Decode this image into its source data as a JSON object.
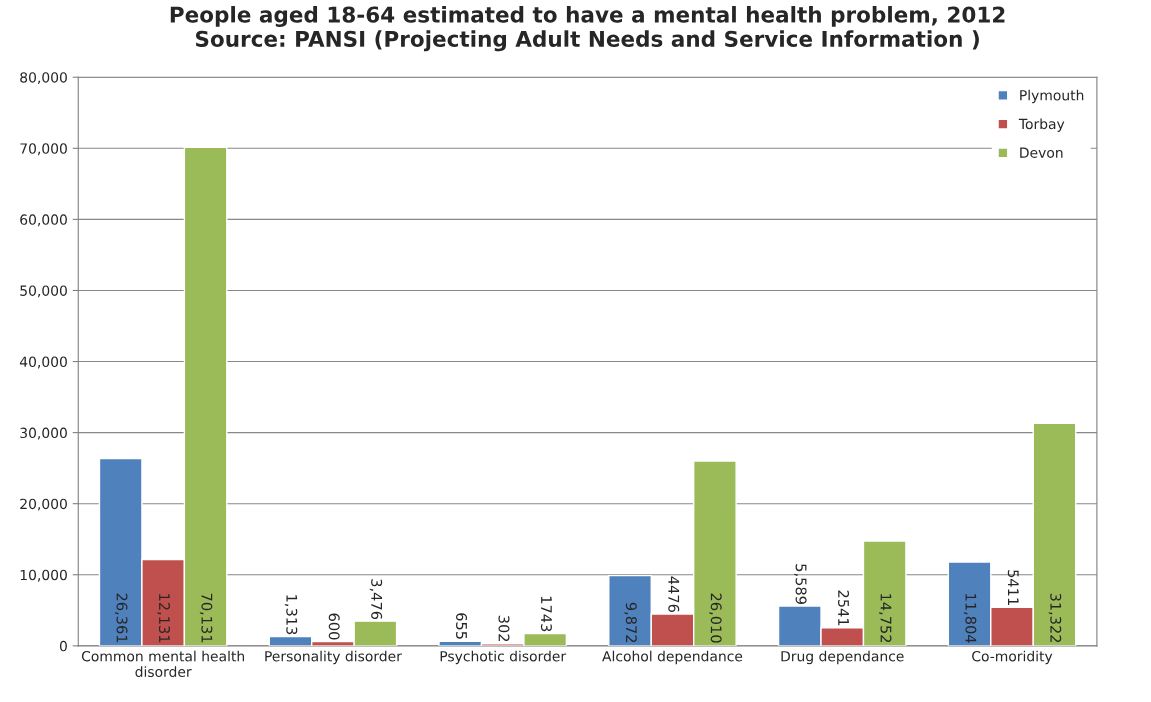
{
  "chart_data": {
    "type": "bar",
    "title": "People aged 18-64 estimated to have a mental health problem, 2012\nSource: PANSI (Projecting Adult Needs and Service Information )",
    "categories": [
      "Common mental health\ndisorder",
      "Personality disorder",
      "Psychotic disorder",
      "Alcohol dependance",
      "Drug dependance",
      "Co-moridity"
    ],
    "series": [
      {
        "name": "Plymouth",
        "color": "#4f81bd",
        "values": [
          26361,
          1313,
          655,
          9872,
          5589,
          11804
        ],
        "value_labels": [
          "26,361",
          "1,313",
          "655",
          "9,872",
          "5,589",
          "11,804"
        ]
      },
      {
        "name": "Torbay",
        "color": "#c0504d",
        "values": [
          12131,
          600,
          302,
          4476,
          2541,
          5411
        ],
        "value_labels": [
          "12,131",
          "600",
          "302",
          "4476",
          "2541",
          "5411"
        ]
      },
      {
        "name": "Devon",
        "color": "#9bbb59",
        "values": [
          70131,
          3476,
          1743,
          26010,
          14752,
          31322
        ],
        "value_labels": [
          "70,131",
          "3,476",
          "1743",
          "26,010",
          "14,752",
          "31,322"
        ]
      }
    ],
    "ylim": [
      0,
      80000
    ],
    "yticks": [
      {
        "value": 0,
        "label": "0"
      },
      {
        "value": 10000,
        "label": "10,000"
      },
      {
        "value": 20000,
        "label": "20,000"
      },
      {
        "value": 30000,
        "label": "30,000"
      },
      {
        "value": 40000,
        "label": "40,000"
      },
      {
        "value": 50000,
        "label": "50,000"
      },
      {
        "value": 60000,
        "label": "60,000"
      },
      {
        "value": 70000,
        "label": "70,000"
      },
      {
        "value": 80000,
        "label": "80,000"
      }
    ],
    "grid": "y",
    "legend": "top right"
  }
}
